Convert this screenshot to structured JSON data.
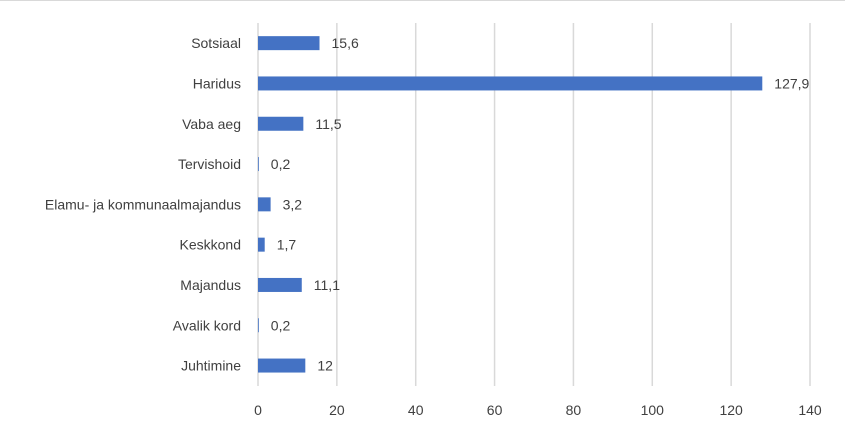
{
  "chart_data": {
    "type": "bar",
    "orientation": "horizontal",
    "title": "",
    "xlabel": "",
    "ylabel": "",
    "categories": [
      "Sotsiaal",
      "Haridus",
      "Vaba aeg",
      "Tervishoid",
      "Elamu- ja kommunaalmajandus",
      "Keskkond",
      "Majandus",
      "Avalik kord",
      "Juhtimine"
    ],
    "values": [
      15.6,
      127.9,
      11.5,
      0.2,
      3.2,
      1.7,
      11.1,
      0.2,
      12
    ],
    "value_labels": [
      "15,6",
      "127,9",
      "11,5",
      "0,2",
      "3,2",
      "1,7",
      "11,1",
      "0,2",
      "12"
    ],
    "xlim": [
      0,
      140
    ],
    "x_ticks": [
      0,
      20,
      40,
      60,
      80,
      100,
      120,
      140
    ],
    "x_tick_labels": [
      "0",
      "20",
      "40",
      "60",
      "80",
      "100",
      "120",
      "140"
    ],
    "grid": "vertical",
    "legend": "none",
    "bar_color": "#4472c4",
    "grid_color": "#d9d9d9",
    "text_color": "#404040"
  }
}
